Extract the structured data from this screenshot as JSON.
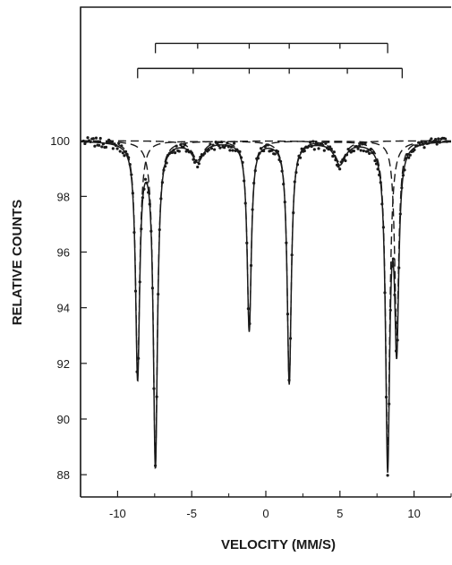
{
  "chart_data": {
    "type": "line",
    "title": "",
    "xlabel": "VELOCITY (MM/S)",
    "ylabel": "RELATIVE COUNTS",
    "xlim": [
      -12.5,
      12.5
    ],
    "ylim": [
      87.2,
      104.8
    ],
    "x_ticks": [
      -10,
      -5,
      0,
      5,
      10
    ],
    "x_tick_labels": [
      "-10",
      "-5",
      "0",
      "5",
      "10"
    ],
    "y_ticks": [
      88,
      90,
      92,
      94,
      96,
      98,
      100
    ],
    "y_tick_labels": [
      "88",
      "90",
      "92",
      "94",
      "96",
      "98",
      "100"
    ],
    "grid": false,
    "baseline": 100,
    "series": [
      {
        "style": "dashed",
        "lines": [
          {
            "center": -8.65,
            "depth": 8.4,
            "hwhm": 0.17
          },
          {
            "center": -1.12,
            "depth": 6.8,
            "hwhm": 0.17
          },
          {
            "center": 8.83,
            "depth": 7.0,
            "hwhm": 0.17
          }
        ]
      },
      {
        "style": "dashed",
        "lines": [
          {
            "center": -7.45,
            "depth": 11.6,
            "hwhm": 0.17
          },
          {
            "center": 1.58,
            "depth": 8.7,
            "hwhm": 0.17
          },
          {
            "center": 8.22,
            "depth": 11.4,
            "hwhm": 0.17
          }
        ]
      },
      {
        "style": "dashed",
        "lines": [
          {
            "center": -4.6,
            "depth": 0.7,
            "hwhm": 0.45
          },
          {
            "center": 5.0,
            "depth": 0.8,
            "hwhm": 0.45
          }
        ]
      }
    ],
    "stick_diagrams": [
      {
        "positions": [
          -7.45,
          -4.6,
          -1.12,
          1.58,
          5.0,
          8.22
        ],
        "level": 103.5
      },
      {
        "positions": [
          -8.65,
          -4.9,
          -1.12,
          1.58,
          5.5,
          9.2
        ],
        "level": 102.6
      }
    ],
    "colors": {
      "ink": "#1a1a1a",
      "background": "#ffffff"
    }
  }
}
